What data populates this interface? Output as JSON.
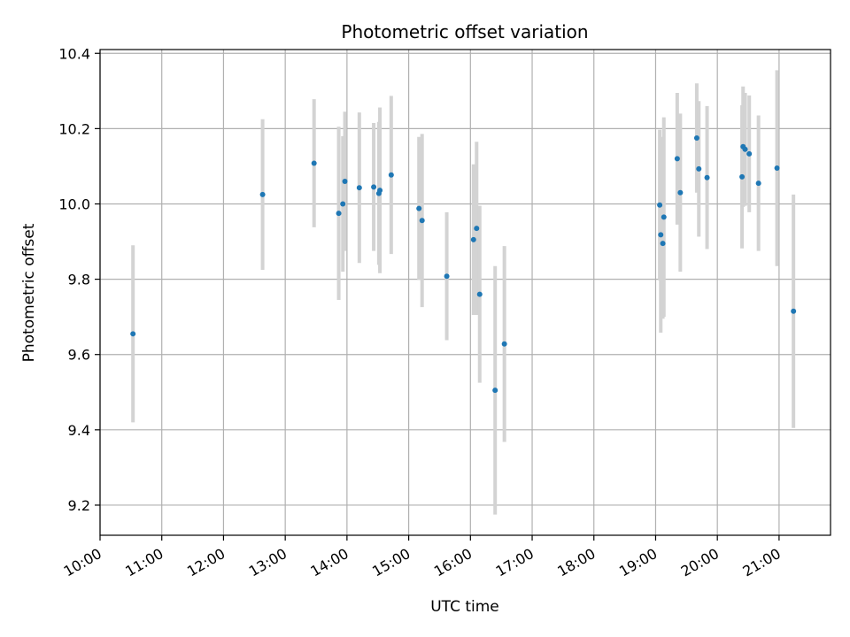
{
  "chart_data": {
    "type": "scatter",
    "title": "Photometric offset variation",
    "xlabel": "UTC time",
    "ylabel": "Photometric offset",
    "xlim": [
      "10:00",
      "21:50"
    ],
    "ylim": [
      9.12,
      10.41
    ],
    "x_ticks": [
      "10:00",
      "11:00",
      "12:00",
      "13:00",
      "14:00",
      "15:00",
      "16:00",
      "17:00",
      "18:00",
      "19:00",
      "20:00",
      "21:00"
    ],
    "y_ticks": [
      "9.2",
      "9.4",
      "9.6",
      "9.8",
      "10.0",
      "10.2",
      "10.4"
    ],
    "grid": true,
    "point_color": "#1f77b4",
    "errorbar_color": "#d3d3d3",
    "series": [
      {
        "points": [
          {
            "x": "10:32",
            "y": 9.655,
            "err": 0.235
          },
          {
            "x": "12:38",
            "y": 10.025,
            "err": 0.2
          },
          {
            "x": "13:28",
            "y": 10.108,
            "err": 0.17
          },
          {
            "x": "13:52",
            "y": 9.975,
            "err": 0.23
          },
          {
            "x": "13:56",
            "y": 10.0,
            "err": 0.18
          },
          {
            "x": "13:58",
            "y": 10.06,
            "err": 0.185
          },
          {
            "x": "14:12",
            "y": 10.043,
            "err": 0.2
          },
          {
            "x": "14:26",
            "y": 10.045,
            "err": 0.17
          },
          {
            "x": "14:31",
            "y": 10.028,
            "err": 0.19
          },
          {
            "x": "14:32",
            "y": 10.036,
            "err": 0.22
          },
          {
            "x": "14:43",
            "y": 10.077,
            "err": 0.21
          },
          {
            "x": "15:10",
            "y": 9.988,
            "err": 0.19
          },
          {
            "x": "15:13",
            "y": 9.956,
            "err": 0.23
          },
          {
            "x": "15:37",
            "y": 9.808,
            "err": 0.17
          },
          {
            "x": "16:03",
            "y": 9.905,
            "err": 0.2
          },
          {
            "x": "16:06",
            "y": 9.935,
            "err": 0.23
          },
          {
            "x": "16:09",
            "y": 9.76,
            "err": 0.235
          },
          {
            "x": "16:24",
            "y": 9.505,
            "err": 0.33
          },
          {
            "x": "16:33",
            "y": 9.628,
            "err": 0.26
          },
          {
            "x": "19:04",
            "y": 9.997,
            "err": 0.2
          },
          {
            "x": "19:05",
            "y": 9.918,
            "err": 0.26
          },
          {
            "x": "19:07",
            "y": 9.895,
            "err": 0.2
          },
          {
            "x": "19:08",
            "y": 9.965,
            "err": 0.265
          },
          {
            "x": "19:21",
            "y": 10.12,
            "err": 0.175
          },
          {
            "x": "19:24",
            "y": 10.03,
            "err": 0.21
          },
          {
            "x": "19:40",
            "y": 10.175,
            "err": 0.145
          },
          {
            "x": "19:42",
            "y": 10.093,
            "err": 0.18
          },
          {
            "x": "19:50",
            "y": 10.07,
            "err": 0.19
          },
          {
            "x": "20:24",
            "y": 10.072,
            "err": 0.19
          },
          {
            "x": "20:25",
            "y": 10.152,
            "err": 0.16
          },
          {
            "x": "20:27",
            "y": 10.145,
            "err": 0.15
          },
          {
            "x": "20:31",
            "y": 10.133,
            "err": 0.155
          },
          {
            "x": "20:40",
            "y": 10.055,
            "err": 0.18
          },
          {
            "x": "20:58",
            "y": 10.095,
            "err": 0.26
          },
          {
            "x": "21:14",
            "y": 9.715,
            "err": 0.31
          }
        ]
      }
    ]
  }
}
